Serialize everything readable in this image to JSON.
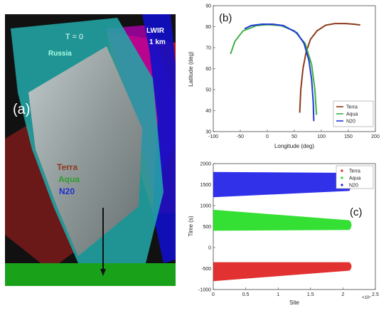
{
  "panel_a": {
    "panel_label": "(a)",
    "time_label": "T = 0",
    "region_label": "Russia",
    "band_label": "LWIR",
    "resolution_label": "1 km",
    "satellites": [
      {
        "name": "Terra",
        "color": "#8B3A1A"
      },
      {
        "name": "Aqua",
        "color": "#2E9E2E"
      },
      {
        "name": "N20",
        "color": "#1E2FD0"
      }
    ]
  },
  "chart_data": [
    {
      "panel_label": "(b)",
      "type": "line",
      "xlabel": "Longitude (deg)",
      "ylabel": "Latitude (deg)",
      "xlim": [
        -100,
        200
      ],
      "ylim": [
        30,
        90
      ],
      "xticks": [
        "-100",
        "-50",
        "0",
        "50",
        "100",
        "150",
        "200"
      ],
      "yticks": [
        "30",
        "40",
        "50",
        "60",
        "70",
        "80",
        "90"
      ],
      "legend_position": "bottom-right",
      "series": [
        {
          "name": "Terra",
          "color": "#8B3A1A",
          "x": [
            60,
            62,
            66,
            72,
            80,
            92,
            108,
            125,
            145,
            160,
            172
          ],
          "y": [
            39,
            50,
            60,
            68,
            74,
            78,
            80.7,
            81.5,
            81.5,
            81.2,
            80.8
          ]
        },
        {
          "name": "Aqua",
          "color": "#3CB043",
          "x": [
            -68,
            -60,
            -45,
            -20,
            0,
            25,
            50,
            70,
            82,
            88,
            91
          ],
          "y": [
            67,
            73,
            78,
            80.5,
            81,
            80.5,
            78,
            72,
            62,
            50,
            38
          ]
        },
        {
          "name": "N20",
          "color": "#2238D8",
          "x": [
            -42,
            -30,
            -10,
            10,
            30,
            55,
            68,
            77,
            82,
            85,
            86
          ],
          "y": [
            79,
            80.5,
            81.2,
            81.2,
            80.5,
            77,
            72,
            64,
            55,
            44,
            35
          ]
        }
      ]
    },
    {
      "panel_label": "(c)",
      "type": "scatter",
      "xlabel": "Site",
      "ylabel": "Time (s)",
      "x_multiplier": "×10⁴",
      "xlim": [
        0,
        2.5
      ],
      "ylim": [
        -1000,
        2000
      ],
      "xticks": [
        "0",
        "0.5",
        "1",
        "1.5",
        "2",
        "2.5"
      ],
      "yticks": [
        "-1000",
        "-500",
        "0",
        "500",
        "1000",
        "1500",
        "2000"
      ],
      "legend_position": "top-right",
      "series": [
        {
          "name": "Terra",
          "color": "#E02020",
          "band": {
            "x_start": 0,
            "x_end": 2.1,
            "y_top_start": -350,
            "y_top_end": -350,
            "y_bottom_start": -800,
            "y_bottom_end": -550
          }
        },
        {
          "name": "Aqua",
          "color": "#22DD22",
          "band": {
            "x_start": 0,
            "x_end": 2.1,
            "y_top_start": 900,
            "y_top_end": 650,
            "y_bottom_start": 400,
            "y_bottom_end": 420
          }
        },
        {
          "name": "N20",
          "color": "#2020E8",
          "band": {
            "x_start": 0,
            "x_end": 2.1,
            "y_top_start": 1800,
            "y_top_end": 1780,
            "y_bottom_start": 1200,
            "y_bottom_end": 1350
          }
        }
      ]
    }
  ]
}
